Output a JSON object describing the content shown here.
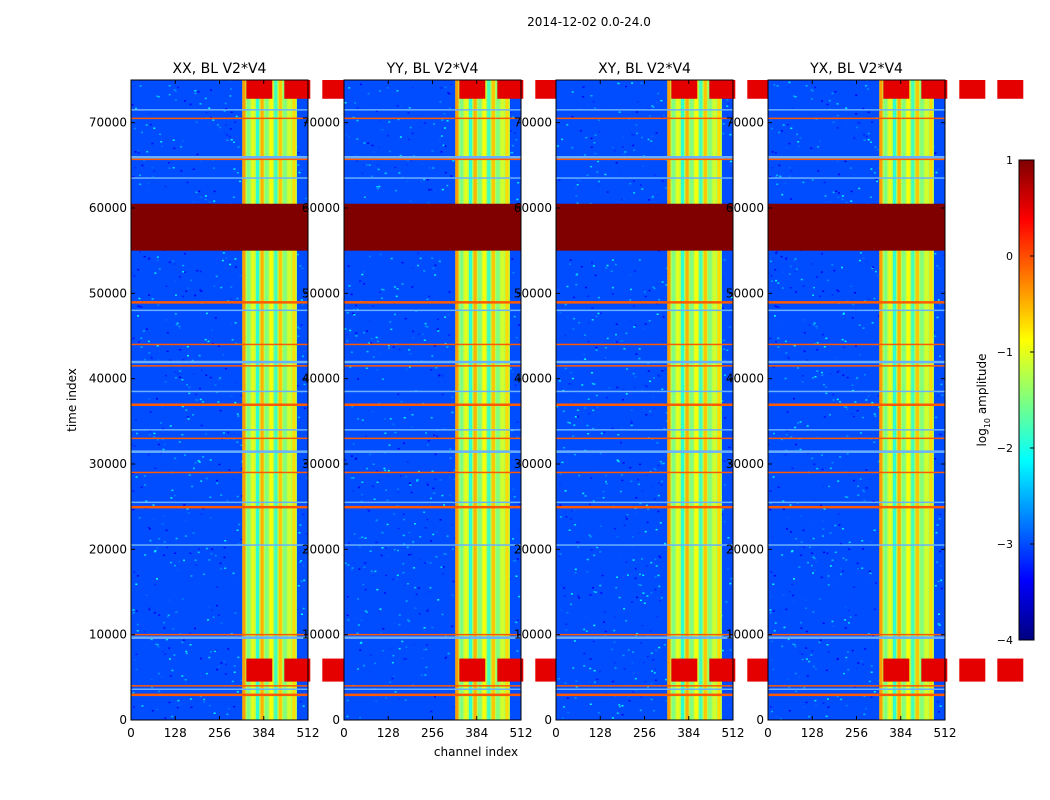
{
  "figure": {
    "suptitle": "2014-12-02 0.0-24.0",
    "xlabel": "channel index",
    "ylabel": "time index"
  },
  "colorbar": {
    "label_prefix": "log",
    "label_sub": "10",
    "label_suffix": " amplitude",
    "ticks": [
      "1",
      "0",
      "−1",
      "−2",
      "−3",
      "−4"
    ],
    "tick_values": [
      1,
      0,
      -1,
      -2,
      -3,
      -4
    ],
    "range": [
      -4,
      1
    ],
    "colormap": "jet"
  },
  "chart_data": [
    {
      "type": "heatmap",
      "title": "XX, BL V2*V4",
      "xlim": [
        0,
        512
      ],
      "ylim": [
        0,
        75000
      ],
      "xticks": [
        "0",
        "128",
        "256",
        "384",
        "512"
      ],
      "yticks": [
        "0",
        "10000",
        "20000",
        "30000",
        "40000",
        "50000",
        "60000",
        "70000"
      ],
      "ytick_values": [
        0,
        10000,
        20000,
        30000,
        40000,
        50000,
        60000,
        70000
      ],
      "saturated_time_band": [
        55000,
        60500
      ],
      "bright_channel_range": [
        322,
        480
      ],
      "background_log10_amplitude": -3
    },
    {
      "type": "heatmap",
      "title": "YY, BL V2*V4",
      "xlim": [
        0,
        512
      ],
      "ylim": [
        0,
        75000
      ],
      "xticks": [
        "0",
        "128",
        "256",
        "384",
        "512"
      ],
      "yticks": [
        "0",
        "10000",
        "20000",
        "30000",
        "40000",
        "50000",
        "60000",
        "70000"
      ],
      "ytick_values": [
        0,
        10000,
        20000,
        30000,
        40000,
        50000,
        60000,
        70000
      ],
      "saturated_time_band": [
        55000,
        60500
      ],
      "bright_channel_range": [
        322,
        480
      ],
      "background_log10_amplitude": -3
    },
    {
      "type": "heatmap",
      "title": "XY, BL V2*V4",
      "xlim": [
        0,
        512
      ],
      "ylim": [
        0,
        75000
      ],
      "xticks": [
        "0",
        "128",
        "256",
        "384",
        "512"
      ],
      "yticks": [
        "0",
        "10000",
        "20000",
        "30000",
        "40000",
        "50000",
        "60000",
        "70000"
      ],
      "ytick_values": [
        0,
        10000,
        20000,
        30000,
        40000,
        50000,
        60000,
        70000
      ],
      "saturated_time_band": [
        55000,
        60500
      ],
      "bright_channel_range": [
        322,
        480
      ],
      "background_log10_amplitude": -3
    },
    {
      "type": "heatmap",
      "title": "YX, BL V2*V4",
      "xlim": [
        0,
        512
      ],
      "ylim": [
        0,
        75000
      ],
      "xticks": [
        "0",
        "128",
        "256",
        "384",
        "512"
      ],
      "yticks": [
        "0",
        "10000",
        "20000",
        "30000",
        "40000",
        "50000",
        "60000",
        "70000"
      ],
      "ytick_values": [
        0,
        10000,
        20000,
        30000,
        40000,
        50000,
        60000,
        70000
      ],
      "saturated_time_band": [
        55000,
        60500
      ],
      "bright_channel_range": [
        322,
        480
      ],
      "background_log10_amplitude": -3
    }
  ]
}
